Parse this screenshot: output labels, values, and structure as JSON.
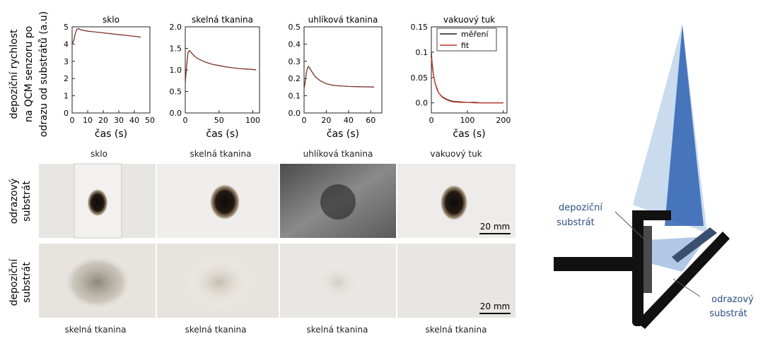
{
  "y_axis_label": [
    "depoziční rychlost",
    "na QCM senzoru po",
    "odrazu od substrátů (a.u)"
  ],
  "charts": [
    {
      "title": "sklo",
      "xlabel": "čas (s)"
    },
    {
      "title": "skelná tkanina",
      "xlabel": "čas (s)"
    },
    {
      "title": "uhlíková tkanina",
      "xlabel": "čas (s)"
    },
    {
      "title": "vakuový tuk",
      "xlabel": "čas (s)"
    }
  ],
  "legend": {
    "measured": "měření",
    "fit": "fit"
  },
  "colors": {
    "measured": "#1a1a1a",
    "fit": "#c0392b",
    "beam_light": "#b9cfe8",
    "beam_dark": "#2f63b3",
    "bracket": "#111111"
  },
  "photo_columns": [
    "sklo",
    "skelná tkanina",
    "uhlíková tkanina",
    "vakuový tuk"
  ],
  "photo_bottom_labels": [
    "skelná tkanina",
    "skelná tkanina",
    "skelná tkanina",
    "skelná tkanina"
  ],
  "row_labels": {
    "reflect": [
      "odrazový",
      "substrát"
    ],
    "deposit": [
      "depoziční",
      "substrát"
    ]
  },
  "scale_bar": "20 mm",
  "diagram": {
    "deposit_label": [
      "depoziční",
      "substrát"
    ],
    "reflect_label": [
      "odrazový",
      "substrát"
    ]
  },
  "chart_data": [
    {
      "type": "line",
      "title": "sklo",
      "xlabel": "čas (s)",
      "xlim": [
        0,
        50
      ],
      "ylim": [
        0,
        5
      ],
      "xticks": [
        0,
        10,
        20,
        30,
        40,
        50
      ],
      "yticks": [
        0,
        1,
        2,
        3,
        4,
        5
      ],
      "series": [
        {
          "x": [
            0,
            1,
            2,
            3,
            4,
            5,
            7,
            10,
            15,
            20,
            25,
            30,
            35,
            40,
            44
          ],
          "y": [
            4.0,
            4.2,
            4.6,
            4.85,
            4.9,
            4.85,
            4.8,
            4.75,
            4.7,
            4.65,
            4.6,
            4.55,
            4.5,
            4.45,
            4.4
          ]
        }
      ]
    },
    {
      "type": "line",
      "title": "skelná tkanina",
      "xlabel": "čas (s)",
      "xlim": [
        0,
        110
      ],
      "ylim": [
        0,
        2.0
      ],
      "xticks": [
        0,
        50,
        100
      ],
      "yticks": [
        0,
        0.5,
        1.0,
        1.5,
        2.0
      ],
      "series": [
        {
          "x": [
            0,
            2,
            4,
            6,
            10,
            15,
            20,
            30,
            40,
            50,
            60,
            70,
            80,
            90,
            100,
            105
          ],
          "y": [
            0.7,
            1.1,
            1.4,
            1.45,
            1.38,
            1.3,
            1.25,
            1.18,
            1.13,
            1.1,
            1.07,
            1.05,
            1.03,
            1.02,
            1.01,
            1.0
          ]
        }
      ]
    },
    {
      "type": "line",
      "title": "uhlíková tkanina",
      "xlabel": "čas (s)",
      "xlim": [
        0,
        70
      ],
      "ylim": [
        0,
        0.5
      ],
      "xticks": [
        0,
        20,
        40,
        60
      ],
      "yticks": [
        0,
        0.1,
        0.2,
        0.3,
        0.4,
        0.5
      ],
      "series": [
        {
          "x": [
            0,
            1,
            2,
            3,
            4,
            6,
            8,
            10,
            15,
            20,
            25,
            30,
            40,
            50,
            60,
            63
          ],
          "y": [
            0.14,
            0.18,
            0.23,
            0.26,
            0.27,
            0.25,
            0.23,
            0.21,
            0.185,
            0.17,
            0.162,
            0.158,
            0.154,
            0.152,
            0.151,
            0.15
          ]
        }
      ]
    },
    {
      "type": "line",
      "title": "vakuový tuk",
      "xlabel": "čas (s)",
      "xlim": [
        0,
        210
      ],
      "ylim": [
        -0.02,
        0.15
      ],
      "xticks": [
        0,
        100,
        200
      ],
      "yticks": [
        0.0,
        0.05,
        0.1,
        0.15
      ],
      "series": [
        {
          "name": "měření",
          "x": [
            0,
            2,
            5,
            10,
            15,
            20,
            30,
            40,
            50,
            60,
            80,
            100,
            120,
            140,
            160,
            180,
            200
          ],
          "y": [
            0.1,
            0.08,
            0.06,
            0.04,
            0.03,
            0.02,
            0.012,
            0.008,
            0.005,
            0.003,
            0.002,
            0.001,
            0.001,
            0.0,
            0.0,
            0.0,
            0.0
          ]
        },
        {
          "name": "fit",
          "x": [
            0,
            2,
            5,
            10,
            15,
            20,
            30,
            40,
            50,
            60,
            80,
            100,
            120,
            140,
            160,
            180,
            200
          ],
          "y": [
            0.09,
            0.075,
            0.058,
            0.04,
            0.028,
            0.02,
            0.011,
            0.007,
            0.004,
            0.002,
            0.001,
            0.001,
            0.0,
            0.0,
            0.0,
            0.0,
            0.0
          ]
        }
      ]
    }
  ]
}
